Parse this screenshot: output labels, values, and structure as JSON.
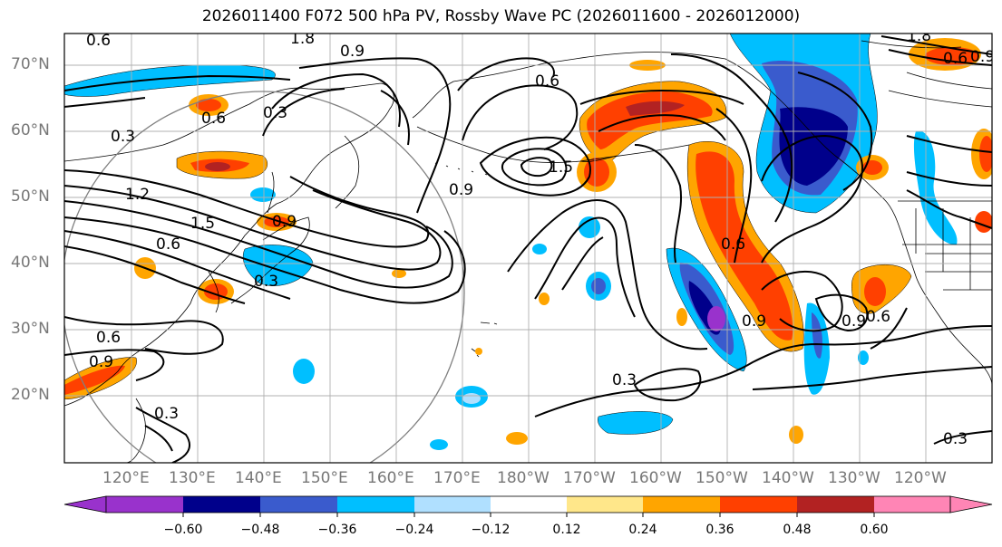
{
  "title": "2026011400 F072 500 hPa PV, Rossby Wave PC (2026011600 - 2026012000)",
  "latitudes": [
    "70°N",
    "60°N",
    "50°N",
    "40°N",
    "30°N",
    "20°N"
  ],
  "longitudes": [
    "120°E",
    "130°E",
    "140°E",
    "150°E",
    "160°E",
    "170°E",
    "180°W",
    "170°W",
    "160°W",
    "150°W",
    "140°W",
    "130°W",
    "120°W"
  ],
  "colorbar": {
    "ticks": [
      "−0.60",
      "−0.48",
      "−0.36",
      "−0.24",
      "−0.12",
      "0.12",
      "0.24",
      "0.36",
      "0.48",
      "0.60"
    ],
    "colors": [
      "#9932cc",
      "#00008b",
      "#3a5bcd",
      "#00bfff",
      "#b0e0ff",
      "#ffffff",
      "#ffe78a",
      "#ffa500",
      "#ff4000",
      "#b22222",
      "#ff85b5"
    ]
  },
  "contour_labels": [
    "0.3",
    "0.6",
    "0.9",
    "1.2",
    "1.5",
    "1.8"
  ],
  "colors": {
    "contour": "#000000",
    "coast": "#000000",
    "grid": "#b0b0b0",
    "circle": "#808080"
  }
}
